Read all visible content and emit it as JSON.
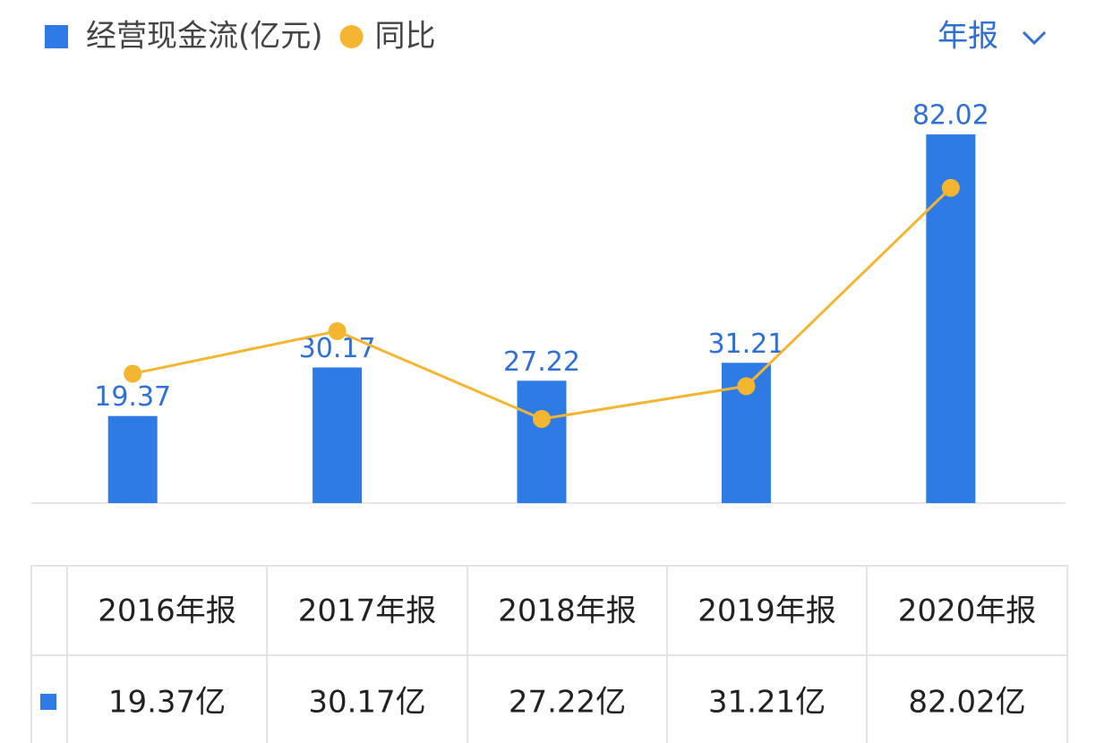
{
  "chart_data": {
    "type": "bar",
    "categories": [
      "2016年报",
      "2017年报",
      "2018年报",
      "2019年报",
      "2020年报"
    ],
    "series": [
      {
        "name": "经营现金流(亿元)",
        "type": "bar",
        "color": "#2f7be6",
        "values": [
          19.37,
          30.17,
          27.22,
          31.21,
          82.02
        ],
        "value_labels": [
          "19.37亿",
          "30.17亿",
          "27.22亿",
          "31.21亿",
          "82.02亿"
        ]
      },
      {
        "name": "同比",
        "type": "line",
        "axis": "y2",
        "color": "#f4b531",
        "values": [
          24,
          55.8,
          -9.8,
          14.7,
          162.9
        ]
      }
    ],
    "ylim": [
      0,
      92
    ],
    "y2lim": [
      -72.7,
      236.4
    ]
  },
  "controls": {
    "period": "年报"
  }
}
